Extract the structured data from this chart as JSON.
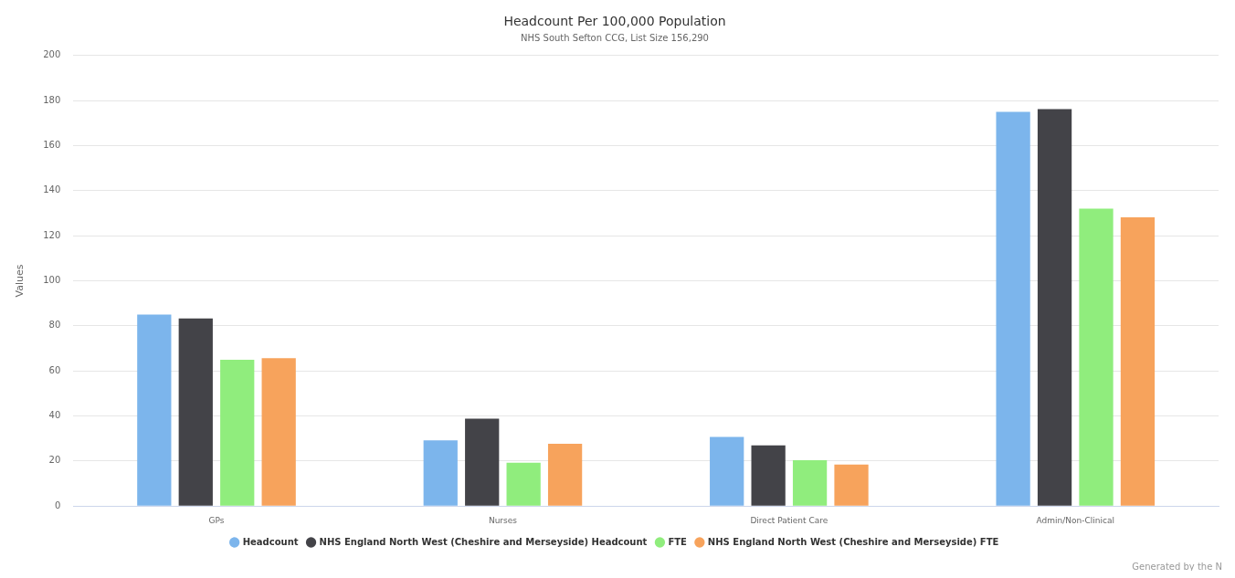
{
  "chart_data": {
    "type": "bar",
    "title": "Headcount Per 100,000 Population",
    "subtitle": "NHS South Sefton CCG, List Size 156,290",
    "ylabel": "Values",
    "categories": [
      "GPs",
      "Nurses",
      "Direct Patient Care",
      "Admin/Non-Clinical"
    ],
    "series": [
      {
        "name": "Headcount",
        "color": "#7cb5ec",
        "values": [
          85,
          29.2,
          30.7,
          175
        ]
      },
      {
        "name": "NHS England North West (Cheshire and Merseyside) Headcount",
        "color": "#434348",
        "values": [
          83.3,
          38.8,
          26.9,
          176.2
        ]
      },
      {
        "name": "FTE",
        "color": "#90ed7d",
        "values": [
          64.9,
          19.2,
          20.3,
          132
        ]
      },
      {
        "name": "NHS England North West (Cheshire and Merseyside) FTE",
        "color": "#f7a35c",
        "values": [
          65.6,
          27.6,
          18.4,
          128.2
        ]
      }
    ],
    "ylim": [
      0,
      200
    ],
    "yticks": [
      0,
      20,
      40,
      60,
      80,
      100,
      120,
      140,
      160,
      180,
      200
    ],
    "grid": "y",
    "legend": "bottom",
    "annotations": [
      "Generated by the N"
    ]
  }
}
